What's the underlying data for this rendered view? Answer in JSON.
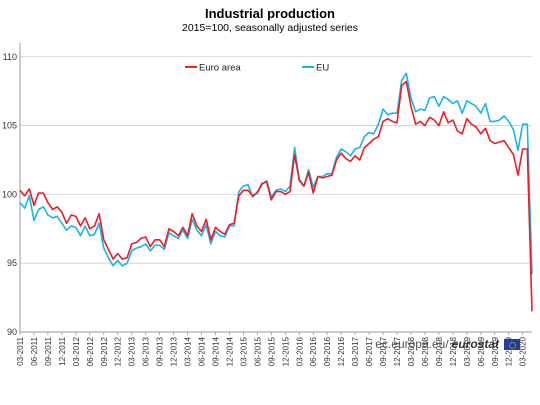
{
  "chart_data": {
    "type": "line",
    "title": "Industrial production",
    "subtitle": "2015=100, seasonally adjusted series",
    "ylim": [
      90,
      111
    ],
    "yticks": [
      90,
      95,
      100,
      105,
      110
    ],
    "grid": "horizontal",
    "legend_position": "top-left",
    "x_tick_labels": [
      "03-2011",
      "06-2011",
      "09-2011",
      "12-2011",
      "03-2012",
      "06-2012",
      "09-2012",
      "12-2012",
      "03-2013",
      "06-2013",
      "09-2013",
      "12-2013",
      "03-2014",
      "06-2014",
      "09-2014",
      "12-2014",
      "03-2015",
      "06-2015",
      "09-2015",
      "12-2015",
      "03-2016",
      "06-2016",
      "09-2016",
      "12-2016",
      "03-2017",
      "06-2017",
      "09-2017",
      "12-2017",
      "03-2018",
      "06-2018",
      "09-2018",
      "12-2018",
      "03-2019",
      "06-2019",
      "09-2019",
      "12-2019",
      "03-2020"
    ],
    "series": [
      {
        "name": "Euro area",
        "color": "#ee1c25",
        "values": [
          100.3,
          99.9,
          100.4,
          99.2,
          100.1,
          100.1,
          99.4,
          98.9,
          99.1,
          98.7,
          97.9,
          98.5,
          98.4,
          97.7,
          98.3,
          97.5,
          97.7,
          98.6,
          96.7,
          96.0,
          95.3,
          95.7,
          95.3,
          95.4,
          96.4,
          96.5,
          96.8,
          96.9,
          96.2,
          96.7,
          96.7,
          96.2,
          97.5,
          97.3,
          97.0,
          97.6,
          97.0,
          98.6,
          97.7,
          97.3,
          98.2,
          96.7,
          97.6,
          97.3,
          97.1,
          97.8,
          97.9,
          99.9,
          100.3,
          100.3,
          99.9,
          100.1,
          100.8,
          100.9,
          99.6,
          100.2,
          100.2,
          100.0,
          100.2,
          102.9,
          101.0,
          100.6,
          101.6,
          100.1,
          101.3,
          101.2,
          101.3,
          101.4,
          102.5,
          103.0,
          102.6,
          102.4,
          102.8,
          102.5,
          103.4,
          103.7,
          104.0,
          104.2,
          105.3,
          105.5,
          105.3,
          105.2,
          107.9,
          108.2,
          106.4,
          105.1,
          105.3,
          105.0,
          105.6,
          105.4,
          105.0,
          106.0,
          105.2,
          105.4,
          104.6,
          104.4,
          105.5,
          105.1,
          104.9,
          104.4,
          104.8,
          103.9,
          103.7,
          103.8,
          103.9,
          103.4,
          102.9,
          101.4,
          103.3,
          103.3,
          91.5
        ]
      },
      {
        "name": "EU",
        "color": "#1ab4e6",
        "values": [
          99.4,
          99.0,
          99.9,
          98.1,
          98.9,
          99.1,
          98.5,
          98.3,
          98.4,
          97.9,
          97.4,
          97.7,
          97.6,
          97.0,
          97.7,
          97.0,
          97.1,
          97.9,
          96.1,
          95.4,
          94.8,
          95.2,
          94.8,
          95.0,
          95.9,
          96.1,
          96.2,
          96.4,
          95.9,
          96.3,
          96.3,
          96.0,
          97.2,
          97.0,
          96.8,
          97.4,
          96.8,
          98.2,
          97.4,
          97.0,
          97.8,
          96.4,
          97.3,
          97.0,
          96.9,
          97.7,
          97.7,
          100.2,
          100.6,
          100.7,
          99.8,
          100.2,
          100.7,
          101.0,
          99.8,
          100.3,
          100.4,
          100.2,
          100.6,
          103.4,
          101.1,
          100.6,
          101.8,
          100.5,
          101.3,
          101.3,
          101.5,
          101.5,
          102.7,
          103.3,
          103.1,
          102.8,
          103.3,
          103.4,
          104.2,
          104.5,
          104.4,
          105.1,
          106.2,
          105.8,
          105.9,
          105.9,
          108.3,
          108.8,
          107.0,
          106.0,
          106.2,
          106.1,
          107.0,
          107.1,
          106.4,
          107.1,
          106.9,
          106.6,
          106.8,
          105.9,
          106.8,
          106.6,
          106.4,
          105.9,
          106.6,
          105.3,
          105.3,
          105.4,
          105.7,
          105.3,
          104.7,
          103.2,
          105.1,
          105.1,
          94.2
        ]
      }
    ]
  },
  "source_prefix": "ec.europa.eu/",
  "source_brand": "eurostat",
  "flag_icon": "eu-flag-icon"
}
